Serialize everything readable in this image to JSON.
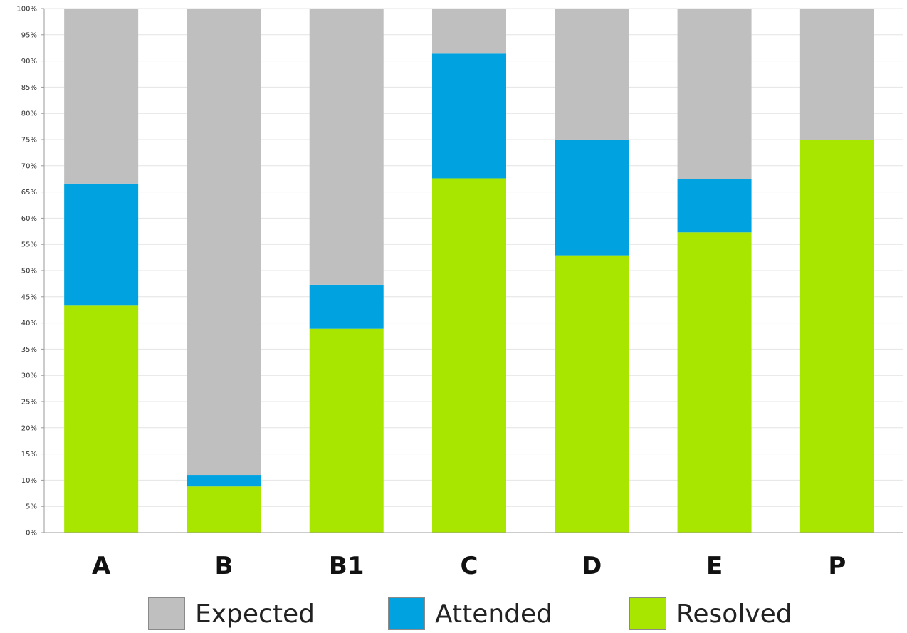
{
  "chart_data": {
    "type": "bar",
    "stacked": true,
    "categories": [
      "A",
      "B",
      "B1",
      "C",
      "D",
      "E",
      "P"
    ],
    "series": [
      {
        "name": "Resolved",
        "color": "#a8e600",
        "values": [
          43.3,
          8.8,
          38.9,
          67.6,
          52.9,
          57.3,
          75.0
        ]
      },
      {
        "name": "Attended",
        "color": "#00a3e0",
        "values": [
          23.3,
          2.2,
          8.4,
          23.8,
          22.1,
          10.2,
          0.0
        ]
      },
      {
        "name": "Expected",
        "color": "#bfbfbf",
        "values": [
          33.4,
          89.0,
          52.7,
          8.6,
          25.0,
          32.5,
          25.0
        ]
      }
    ],
    "ylim": [
      0,
      100
    ],
    "yticks": [
      "0%",
      "5%",
      "10%",
      "15%",
      "20%",
      "25%",
      "30%",
      "35%",
      "40%",
      "45%",
      "50%",
      "55%",
      "60%",
      "65%",
      "70%",
      "75%",
      "80%",
      "85%",
      "90%",
      "95%",
      "100%"
    ],
    "grid": true,
    "legend_position": "bottom",
    "legend": [
      "Expected",
      "Attended",
      "Resolved"
    ],
    "title": "",
    "xlabel": "",
    "ylabel": ""
  }
}
